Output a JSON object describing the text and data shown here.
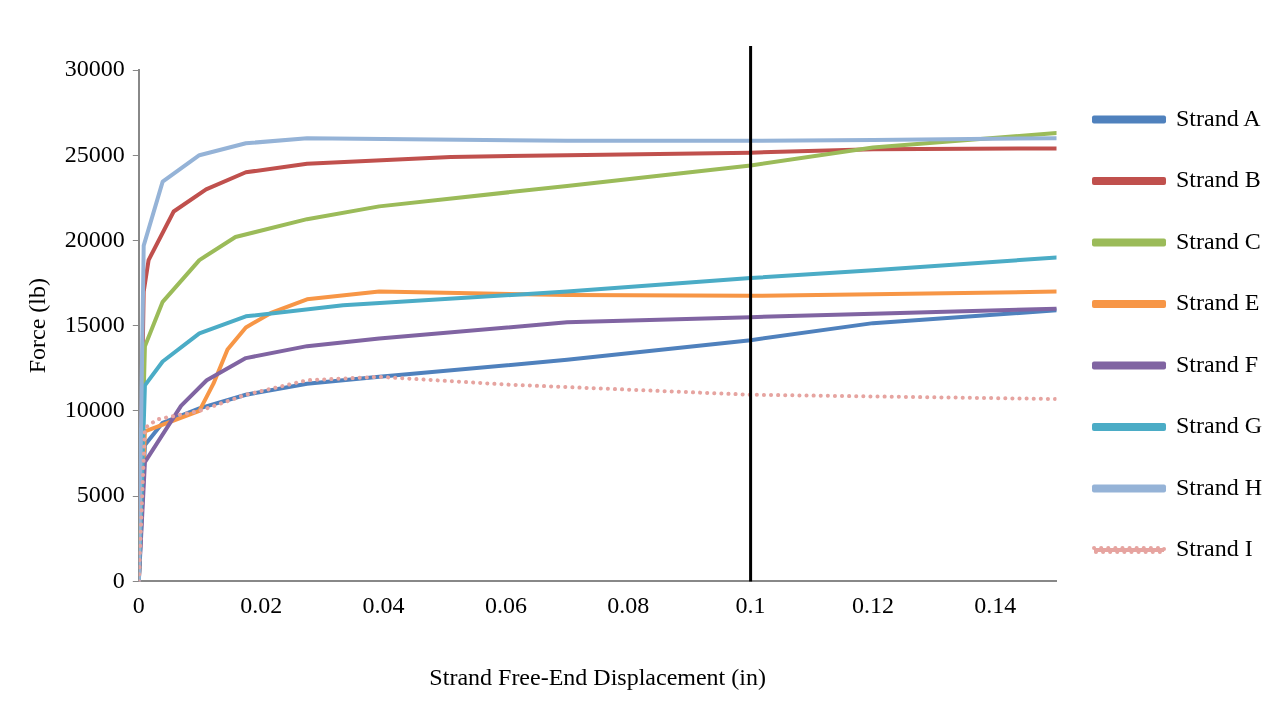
{
  "chart_data": {
    "type": "line",
    "xlabel": "Strand Free-End Displacement (in)",
    "ylabel": "Force (lb)",
    "xlim": [
      0,
      0.15
    ],
    "xticks": [
      0,
      0.02,
      0.04,
      0.06,
      0.08,
      0.1,
      0.12,
      0.14
    ],
    "ylim": [
      0,
      30000
    ],
    "yticks": [
      0,
      5000,
      10000,
      15000,
      20000,
      25000,
      30000
    ],
    "grid": false,
    "legend": "right",
    "marker": "none",
    "ref_lines": [
      {
        "axis": "x",
        "value": 0.1,
        "color": "#000000"
      }
    ],
    "series": [
      {
        "name": "Strand A",
        "color": "#4f81bd",
        "x": [
          0,
          0.001,
          0.0039,
          0.0099,
          0.0175,
          0.0275,
          0.0393,
          0.07,
          0.1,
          0.12,
          0.15
        ],
        "values": [
          0,
          8000,
          9300,
          10150,
          10950,
          11600,
          12000,
          13000,
          14150,
          15150,
          15900
        ]
      },
      {
        "name": "Strand B",
        "color": "#c0504d",
        "x": [
          0,
          0.0008,
          0.0016,
          0.0057,
          0.011,
          0.0175,
          0.0275,
          0.051,
          0.07,
          0.1,
          0.12,
          0.15
        ],
        "values": [
          0,
          17000,
          18850,
          21700,
          23000,
          24000,
          24500,
          24900,
          25000,
          25150,
          25350,
          25400
        ]
      },
      {
        "name": "Strand C",
        "color": "#9bbb59",
        "x": [
          0,
          0.001,
          0.0039,
          0.0099,
          0.0158,
          0.0275,
          0.0393,
          0.07,
          0.1,
          0.12,
          0.15
        ],
        "values": [
          0,
          13800,
          16400,
          18850,
          20200,
          21250,
          22000,
          23200,
          24400,
          25450,
          26300
        ]
      },
      {
        "name": "Strand E",
        "color": "#f79646",
        "x": [
          0,
          0.001,
          0.0099,
          0.0122,
          0.0145,
          0.0175,
          0.0216,
          0.0275,
          0.0393,
          0.07,
          0.1,
          0.12,
          0.15
        ],
        "values": [
          0,
          8800,
          10000,
          11600,
          13600,
          14900,
          15750,
          16550,
          17000,
          16800,
          16750,
          16850,
          17000
        ]
      },
      {
        "name": "Strand F",
        "color": "#8064a2",
        "x": [
          0,
          0.001,
          0.0069,
          0.0111,
          0.0175,
          0.0275,
          0.0393,
          0.07,
          0.1,
          0.12,
          0.15
        ],
        "values": [
          0,
          7000,
          10300,
          11800,
          13100,
          13800,
          14250,
          15200,
          15500,
          15700,
          16000
        ]
      },
      {
        "name": "Strand G",
        "color": "#4bacc6",
        "x": [
          0,
          0.001,
          0.0039,
          0.0099,
          0.0175,
          0.0334,
          0.07,
          0.1,
          0.12,
          0.15
        ],
        "values": [
          0,
          11500,
          12900,
          14550,
          15550,
          16200,
          17000,
          17800,
          18250,
          19000
        ]
      },
      {
        "name": "Strand H",
        "color": "#95b3d7",
        "x": [
          0,
          0.0008,
          0.0039,
          0.0099,
          0.0175,
          0.0275,
          0.07,
          0.1,
          0.12,
          0.15
        ],
        "values": [
          0,
          19700,
          23450,
          25000,
          25700,
          26000,
          25850,
          25850,
          25900,
          26000
        ]
      },
      {
        "name": "Strand I",
        "color": "#e6a4a0",
        "line_style": "dotted",
        "x": [
          0,
          0.001,
          0.003,
          0.0099,
          0.0175,
          0.0275,
          0.0393,
          0.06,
          0.1,
          0.15
        ],
        "values": [
          0,
          9000,
          9500,
          10000,
          10950,
          11800,
          12000,
          11550,
          10950,
          10700
        ]
      }
    ]
  }
}
